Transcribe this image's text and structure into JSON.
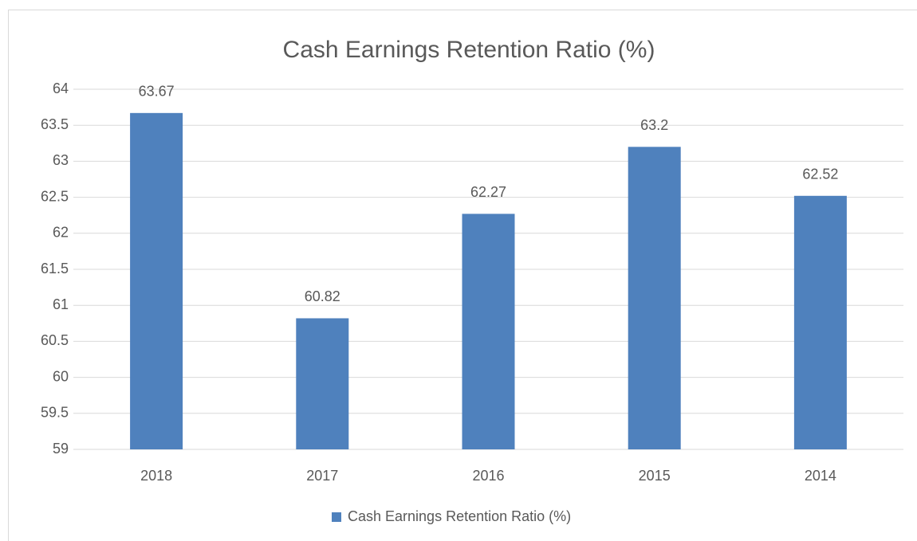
{
  "chart_data": {
    "type": "bar",
    "title": "Cash Earnings Retention Ratio (%)",
    "categories": [
      "2018",
      "2017",
      "2016",
      "2015",
      "2014"
    ],
    "series": [
      {
        "name": "Cash Earnings Retention Ratio (%)",
        "color": "#4f81bd",
        "values": [
          63.67,
          60.82,
          62.27,
          63.2,
          62.52
        ]
      }
    ],
    "ylim": [
      59,
      64
    ],
    "yticks": [
      59,
      59.5,
      60,
      60.5,
      61,
      61.5,
      62,
      62.5,
      63,
      63.5,
      64
    ],
    "grid": true,
    "legend": "bottom"
  }
}
